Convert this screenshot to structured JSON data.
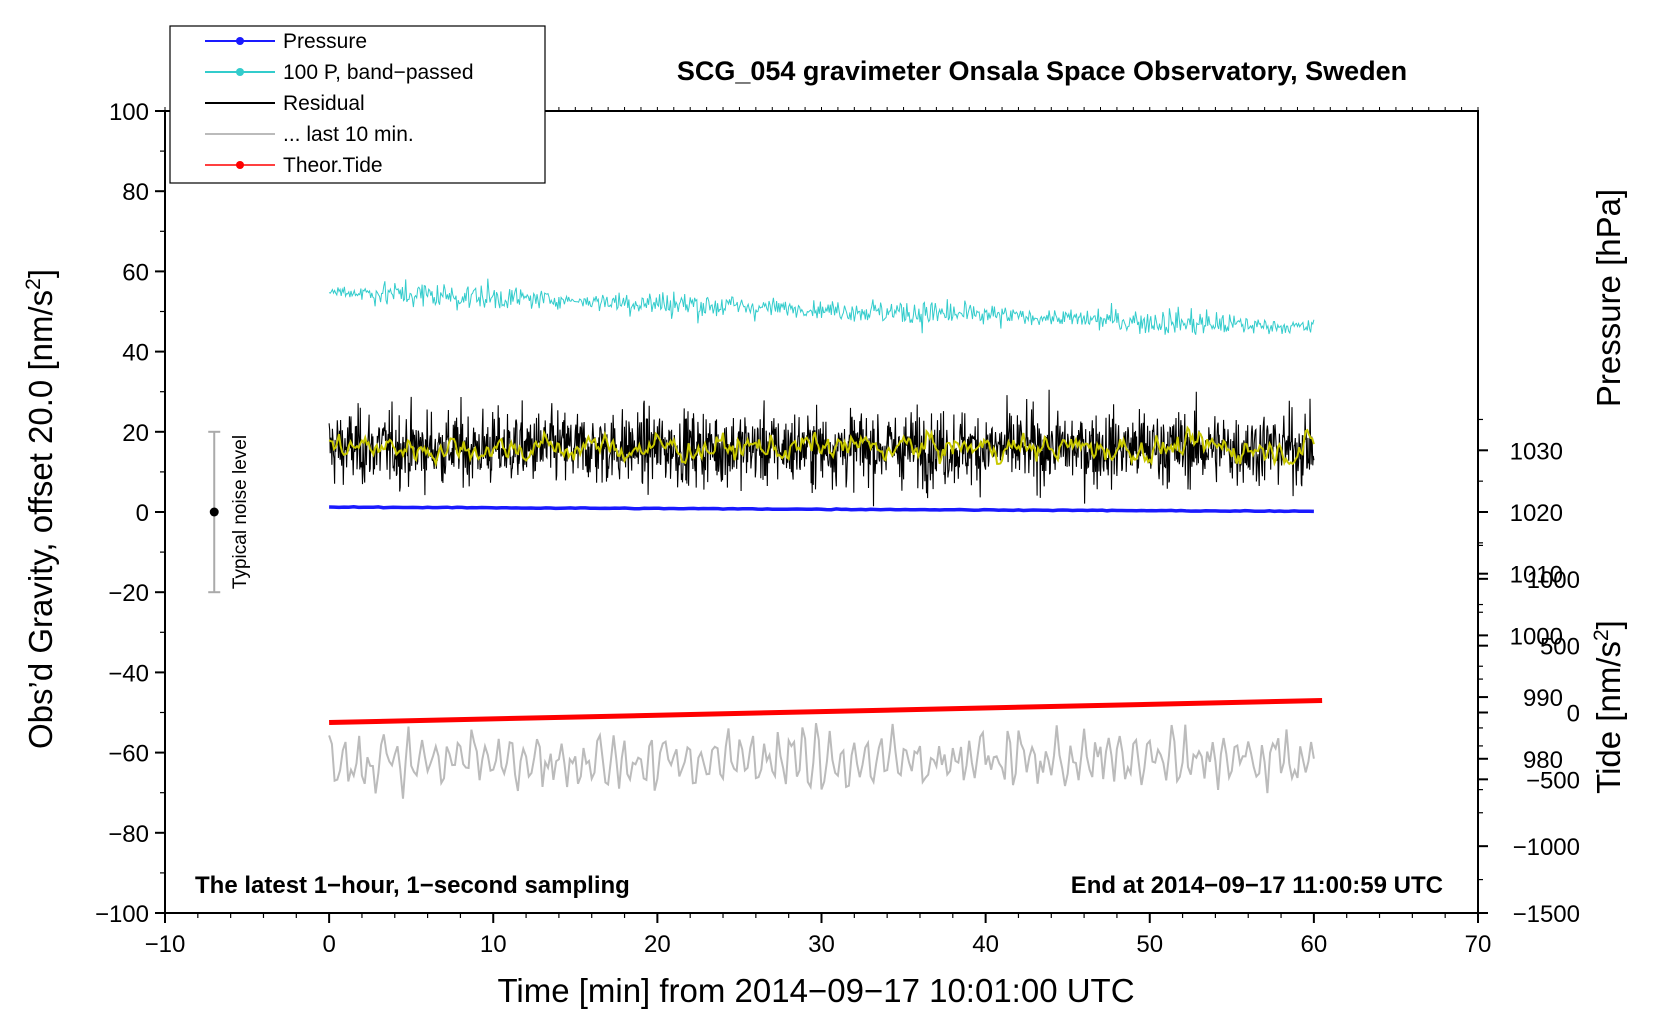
{
  "chart_data": {
    "type": "line",
    "title": "SCG_054 gravimeter Onsala Space Observatory, Sweden",
    "xlabel": "Time [min] from 2014−09−17 10:01:00 UTC",
    "ylabel": "Obs’d Gravity, offset 20.0 [nm/s²]",
    "ylabel_parts": {
      "prefix": "Obs’d Gravity, offset 20.0 [nm/s",
      "sup": "2",
      "suffix": "]"
    },
    "xlim": [
      -10,
      70
    ],
    "ylim": [
      -100,
      100
    ],
    "x_ticks": [
      "−10",
      "0",
      "10",
      "20",
      "30",
      "40",
      "50",
      "60",
      "70"
    ],
    "y_ticks": [
      "−100",
      "−80",
      "−60",
      "−40",
      "−20",
      "0",
      "20",
      "40",
      "60",
      "80",
      "100"
    ],
    "pressure_axis": {
      "label": "Pressure [hPa]",
      "ticks": [
        "980",
        "990",
        "1000",
        "1010",
        "1020",
        "1030"
      ],
      "range": [
        955,
        1085
      ]
    },
    "tide_axis": {
      "label_prefix": "Tide [nm/s",
      "label_sup": "2",
      "label_suffix": "]",
      "ticks": [
        "−1500",
        "−1000",
        "−500",
        "0",
        "500",
        "1000"
      ],
      "range": [
        -1500,
        4500
      ]
    },
    "legend": [
      {
        "label": "Pressure",
        "color": "#1a1aff",
        "marker": "dot"
      },
      {
        "label": "100 P, band−passed",
        "color": "#33cccc",
        "marker": "dot"
      },
      {
        "label": "Residual",
        "color": "#000000",
        "marker": "none"
      },
      {
        "label": "... last 10 min.",
        "color": "#bbbbbb",
        "marker": "none"
      },
      {
        "label": "Theor.Tide",
        "color": "#ff0000",
        "marker": "dot"
      }
    ],
    "series": [
      {
        "name": "Pressure",
        "color": "#1a1aff",
        "x_range": [
          0,
          60
        ],
        "value_start": 1020.8,
        "value_end": 1020.1,
        "scale": "pressure"
      },
      {
        "name": "100 P, band-passed",
        "color": "#33cccc",
        "x_range": [
          0,
          60
        ],
        "mean_start": 55,
        "mean_end": 46,
        "noise_amplitude": 3,
        "scale": "gravity"
      },
      {
        "name": "Residual",
        "color": "#000000",
        "x_range": [
          0,
          60
        ],
        "mean": 16,
        "range": [
          -2,
          35
        ],
        "scale": "gravity"
      },
      {
        "name": "Residual smoothed",
        "color": "#c8c800",
        "x_range": [
          0,
          60
        ],
        "mean": 16,
        "range": [
          12,
          21
        ],
        "scale": "gravity"
      },
      {
        "name": "... last 10 min.",
        "color": "#bbbbbb",
        "x_range": [
          0,
          60
        ],
        "mean": -62,
        "range": [
          -77,
          -52
        ],
        "scale": "gravity"
      },
      {
        "name": "Theor.Tide",
        "color": "#ff0000",
        "x_range": [
          0,
          60.5
        ],
        "value_start": -52.5,
        "value_end": -47,
        "scale": "gravity"
      }
    ],
    "noise_indicator": {
      "label": "Typical noise level",
      "x": -7,
      "center": 0,
      "low": -20,
      "high": 20
    },
    "annotations": {
      "bottom_left": "The latest 1−hour, 1−second sampling",
      "bottom_right": "End at 2014−09−17 11:00:59 UTC"
    }
  }
}
